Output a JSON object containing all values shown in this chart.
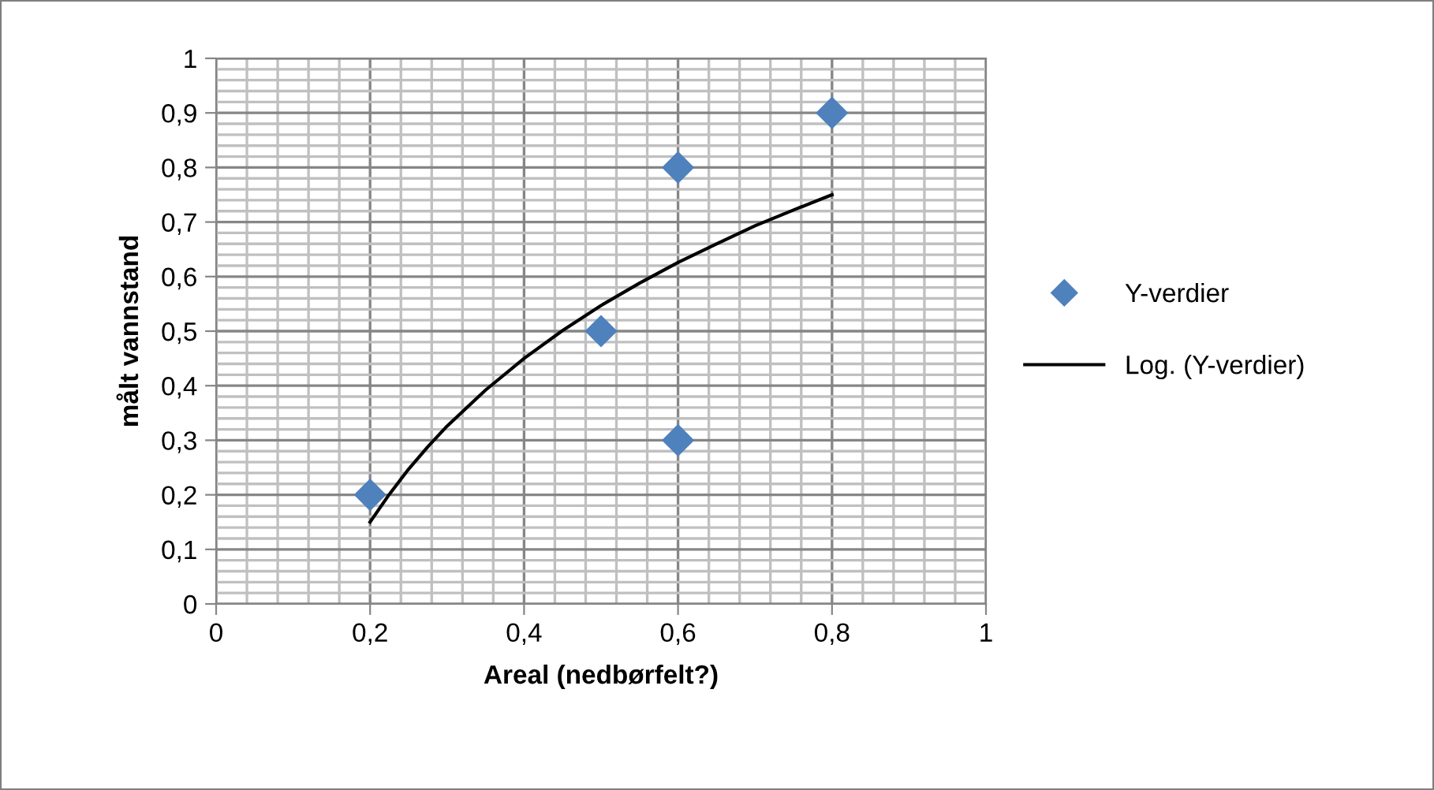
{
  "chart_data": {
    "type": "scatter",
    "xlabel": "Areal (nedbørfelt?)",
    "ylabel": "målt vannstand",
    "xlim": [
      0,
      1
    ],
    "ylim": [
      0,
      1
    ],
    "xticks": [
      {
        "value": 0,
        "label": "0"
      },
      {
        "value": 0.2,
        "label": "0,2"
      },
      {
        "value": 0.4,
        "label": "0,4"
      },
      {
        "value": 0.6,
        "label": "0,6"
      },
      {
        "value": 0.8,
        "label": "0,8"
      },
      {
        "value": 1,
        "label": "1"
      }
    ],
    "yticks": [
      {
        "value": 0,
        "label": "0"
      },
      {
        "value": 0.1,
        "label": "0,1"
      },
      {
        "value": 0.2,
        "label": "0,2"
      },
      {
        "value": 0.3,
        "label": "0,3"
      },
      {
        "value": 0.4,
        "label": "0,4"
      },
      {
        "value": 0.5,
        "label": "0,5"
      },
      {
        "value": 0.6,
        "label": "0,6"
      },
      {
        "value": 0.7,
        "label": "0,7"
      },
      {
        "value": 0.8,
        "label": "0,8"
      },
      {
        "value": 0.9,
        "label": "0,9"
      },
      {
        "value": 1,
        "label": "1"
      }
    ],
    "grid": true,
    "legend": "right",
    "series": [
      {
        "name": "Y-verdier",
        "marker": "diamond",
        "color": "#4f81bd",
        "x": [
          0.2,
          0.5,
          0.6,
          0.6,
          0.8
        ],
        "values": [
          0.2,
          0.5,
          0.8,
          0.3,
          0.9
        ]
      },
      {
        "name": "Log. (Y-verdier)",
        "type": "line",
        "marker": "none",
        "line_style": "solid",
        "color": "#000000",
        "x": [
          0.2,
          0.225,
          0.25,
          0.275,
          0.3,
          0.35,
          0.4,
          0.45,
          0.5,
          0.55,
          0.6,
          0.65,
          0.7,
          0.75,
          0.8
        ],
        "values": [
          0.15,
          0.201,
          0.247,
          0.288,
          0.326,
          0.392,
          0.45,
          0.501,
          0.547,
          0.588,
          0.626,
          0.66,
          0.693,
          0.722,
          0.75
        ]
      }
    ]
  }
}
